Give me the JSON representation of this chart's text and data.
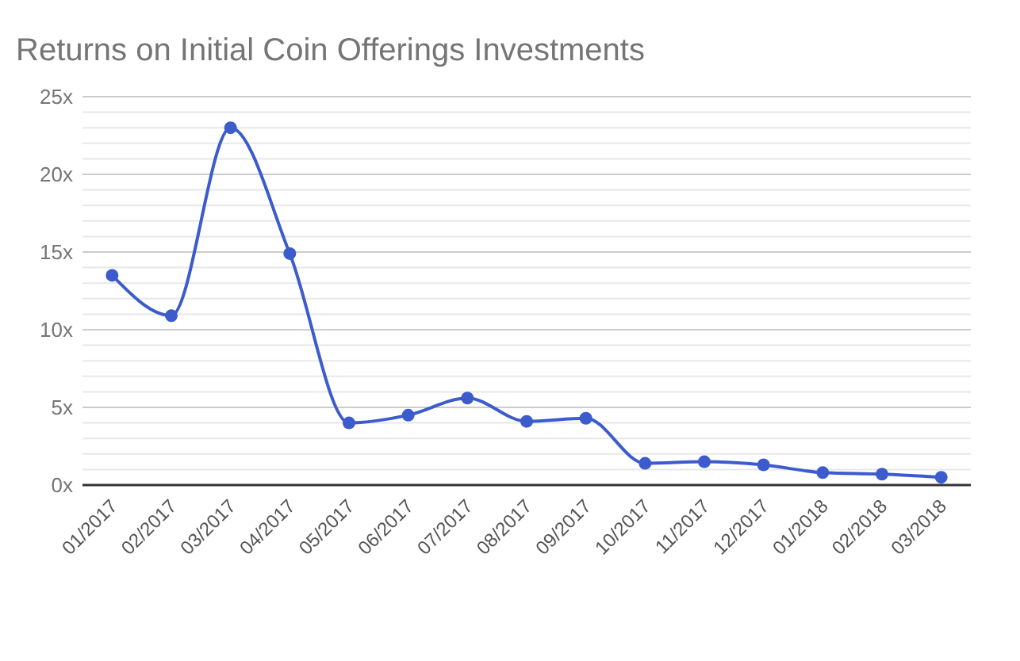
{
  "chart_data": {
    "type": "line",
    "title": "Returns on Initial Coin Offerings Investments",
    "categories": [
      "01/2017",
      "02/2017",
      "03/2017",
      "04/2017",
      "05/2017",
      "06/2017",
      "07/2017",
      "08/2017",
      "09/2017",
      "10/2017",
      "11/2017",
      "12/2017",
      "01/2018",
      "02/2018",
      "03/2018"
    ],
    "series": [
      {
        "color": "#3c5bcc",
        "values": [
          13.5,
          10.9,
          23,
          14.9,
          4.0,
          4.5,
          5.6,
          4.1,
          4.3,
          1.4,
          1.5,
          1.3,
          0.8,
          0.7,
          0.5
        ]
      }
    ],
    "ylim": [
      0,
      25
    ],
    "yticks": [
      {
        "value": 0,
        "label": "0x"
      },
      {
        "value": 1,
        "label": null
      },
      {
        "value": 2,
        "label": null
      },
      {
        "value": 3,
        "label": null
      },
      {
        "value": 4,
        "label": null
      },
      {
        "value": 5,
        "label": "5x"
      },
      {
        "value": 6,
        "label": null
      },
      {
        "value": 7,
        "label": null
      },
      {
        "value": 8,
        "label": null
      },
      {
        "value": 9,
        "label": null
      },
      {
        "value": 10,
        "label": "10x"
      },
      {
        "value": 11,
        "label": null
      },
      {
        "value": 12,
        "label": null
      },
      {
        "value": 13,
        "label": null
      },
      {
        "value": 14,
        "label": null
      },
      {
        "value": 15,
        "label": "15x"
      },
      {
        "value": 16,
        "label": null
      },
      {
        "value": 17,
        "label": null
      },
      {
        "value": 18,
        "label": null
      },
      {
        "value": 19,
        "label": null
      },
      {
        "value": 20,
        "label": "20x"
      },
      {
        "value": 21,
        "label": null
      },
      {
        "value": 22,
        "label": null
      },
      {
        "value": 23,
        "label": null
      },
      {
        "value": 24,
        "label": null
      },
      {
        "value": 25,
        "label": "25x"
      }
    ],
    "grid": "y",
    "marker": "circle",
    "line_style": "solid"
  }
}
